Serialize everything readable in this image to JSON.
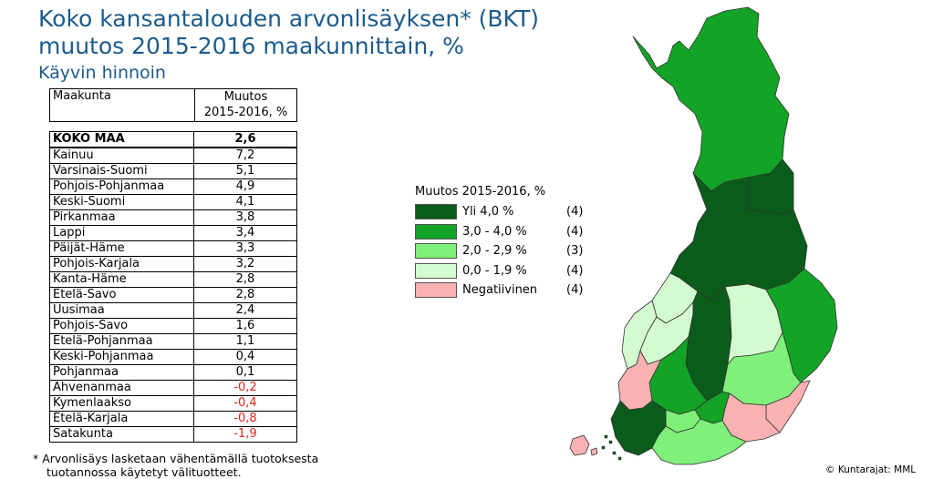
{
  "title": {
    "line1": "Koko kansantalouden arvonlisäyksen* (BKT)",
    "line2": "muutos 2015-2016 maakunnittain, %",
    "subtitle": "Käyvin hinnoin"
  },
  "table": {
    "col1_header": "Maakunta",
    "col2_header_line1": "Muutos",
    "col2_header_line2": "2015-2016, %",
    "total": {
      "name": "KOKO MAA",
      "value": "2,6"
    },
    "rows": [
      {
        "name": "Kainuu",
        "value": "7,2"
      },
      {
        "name": "Varsinais-Suomi",
        "value": "5,1"
      },
      {
        "name": "Pohjois-Pohjanmaa",
        "value": "4,9"
      },
      {
        "name": "Keski-Suomi",
        "value": "4,1"
      },
      {
        "name": "Pirkanmaa",
        "value": "3,8"
      },
      {
        "name": "Lappi",
        "value": "3,4"
      },
      {
        "name": "Päijät-Häme",
        "value": "3,3"
      },
      {
        "name": "Pohjois-Karjala",
        "value": "3,2"
      },
      {
        "name": "Kanta-Häme",
        "value": "2,8"
      },
      {
        "name": "Etelä-Savo",
        "value": "2,8"
      },
      {
        "name": "Uusimaa",
        "value": "2,4"
      },
      {
        "name": "Pohjois-Savo",
        "value": "1,6"
      },
      {
        "name": "Etelä-Pohjanmaa",
        "value": "1,1"
      },
      {
        "name": "Keski-Pohjanmaa",
        "value": "0,4"
      },
      {
        "name": "Pohjanmaa",
        "value": "0,1"
      },
      {
        "name": "Ahvenanmaa",
        "value": "-0,2"
      },
      {
        "name": "Kymenlaakso",
        "value": "-0,4"
      },
      {
        "name": "Etelä-Karjala",
        "value": "-0,8"
      },
      {
        "name": "Satakunta",
        "value": "-1,9"
      }
    ]
  },
  "footnote": {
    "line1": "* Arvonlisäys lasketaan vähentämällä tuotoksesta",
    "line2": "tuotannossa käytetyt välituotteet."
  },
  "legend": {
    "title": "Muutos 2015-2016, %",
    "items": [
      {
        "label": "Yli 4,0 %",
        "count": "(4)",
        "color": "#0a5c1a"
      },
      {
        "label": "3,0 - 4,0 %",
        "count": "(4)",
        "color": "#13a326"
      },
      {
        "label": "2,0 - 2,9 %",
        "count": "(3)",
        "color": "#7ff07a"
      },
      {
        "label": "0,0 - 1,9 %",
        "count": "(4)",
        "color": "#d4fbd0"
      },
      {
        "label": "Negatiivinen",
        "count": "(4)",
        "color": "#f9b1b1"
      }
    ]
  },
  "credit": "© Kuntarajat: MML"
}
